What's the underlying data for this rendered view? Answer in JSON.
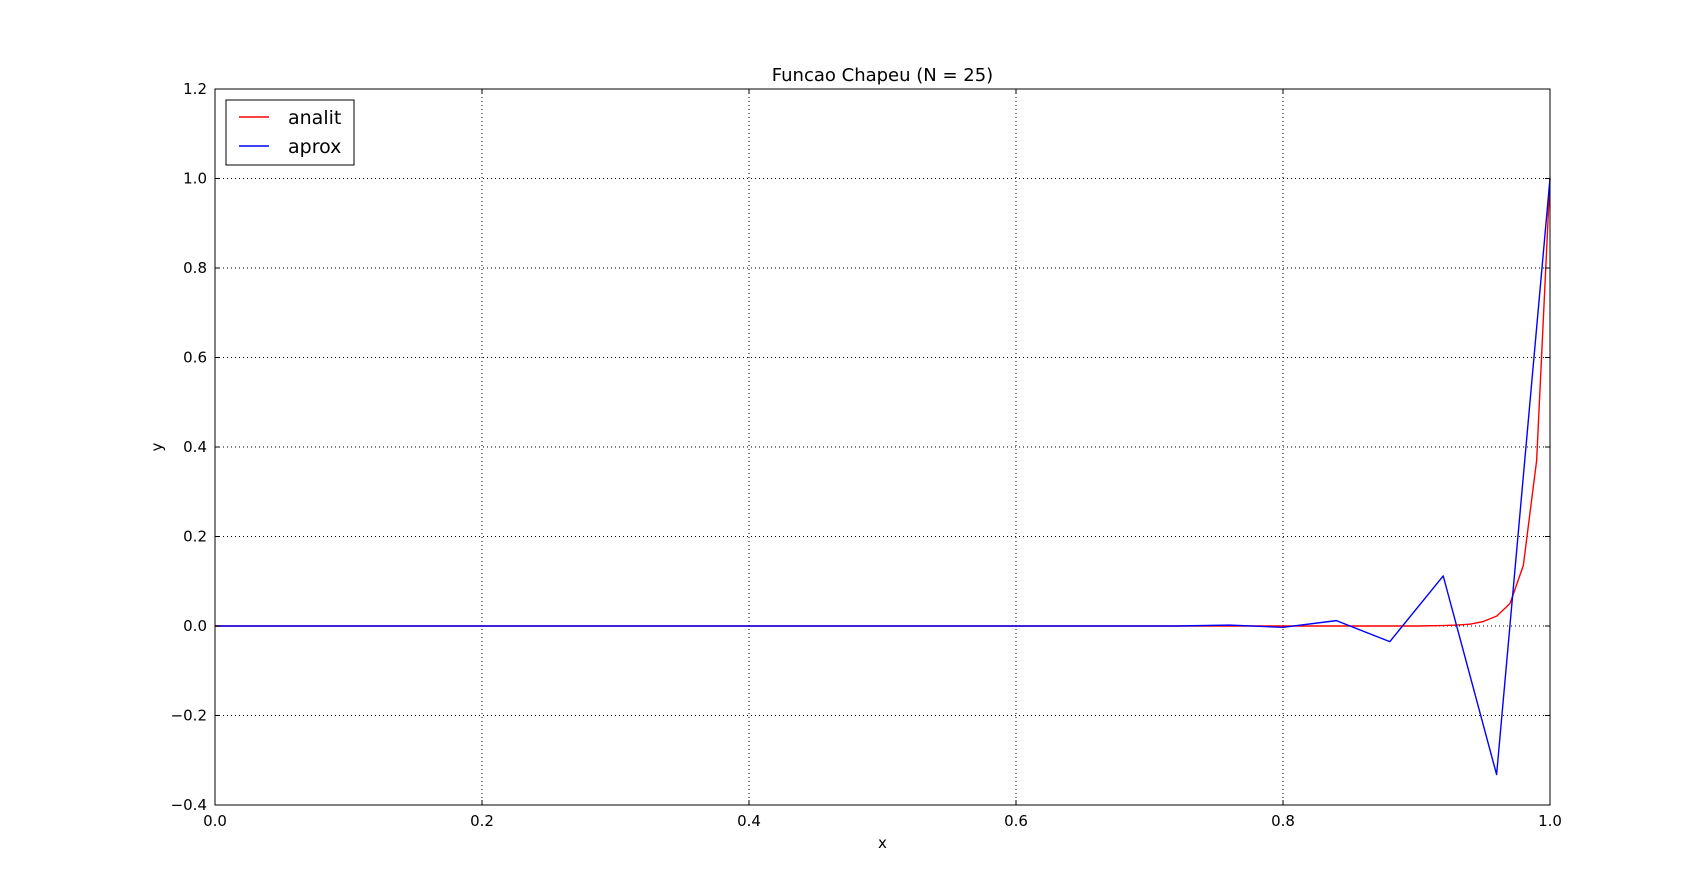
{
  "chart_data": {
    "type": "line",
    "title": "Funcao Chapeu (N = 25)",
    "xlabel": "x",
    "ylabel": "y",
    "xlim": [
      0.0,
      1.0
    ],
    "ylim": [
      -0.4,
      1.2
    ],
    "xticks": [
      0.0,
      0.2,
      0.4,
      0.6,
      0.8,
      1.0
    ],
    "xtick_labels": [
      "0.0",
      "0.2",
      "0.4",
      "0.6",
      "0.8",
      "1.0"
    ],
    "yticks": [
      -0.4,
      -0.2,
      0.0,
      0.2,
      0.4,
      0.6,
      0.8,
      1.0,
      1.2
    ],
    "ytick_labels": [
      "−0.4",
      "−0.2",
      "0.0",
      "0.2",
      "0.4",
      "0.6",
      "0.8",
      "1.0",
      "1.2"
    ],
    "grid": true,
    "legend_position": "top-left",
    "series": [
      {
        "name": "analit",
        "color": "#ff0000",
        "x": [
          0.0,
          0.7,
          0.8,
          0.9,
          0.92,
          0.93,
          0.94,
          0.95,
          0.96,
          0.97,
          0.98,
          0.99,
          1.0
        ],
        "y": [
          0.0,
          0.0,
          0.0,
          0.0,
          0.001,
          0.002,
          0.004,
          0.01,
          0.022,
          0.05,
          0.135,
          0.37,
          1.0
        ]
      },
      {
        "name": "aprox",
        "color": "#0000ff",
        "x": [
          0.0,
          0.72,
          0.76,
          0.8,
          0.84,
          0.88,
          0.92,
          0.96,
          1.0
        ],
        "y": [
          0.0,
          0.0,
          0.002,
          -0.003,
          0.012,
          -0.035,
          0.112,
          -0.332,
          1.0
        ]
      }
    ]
  }
}
